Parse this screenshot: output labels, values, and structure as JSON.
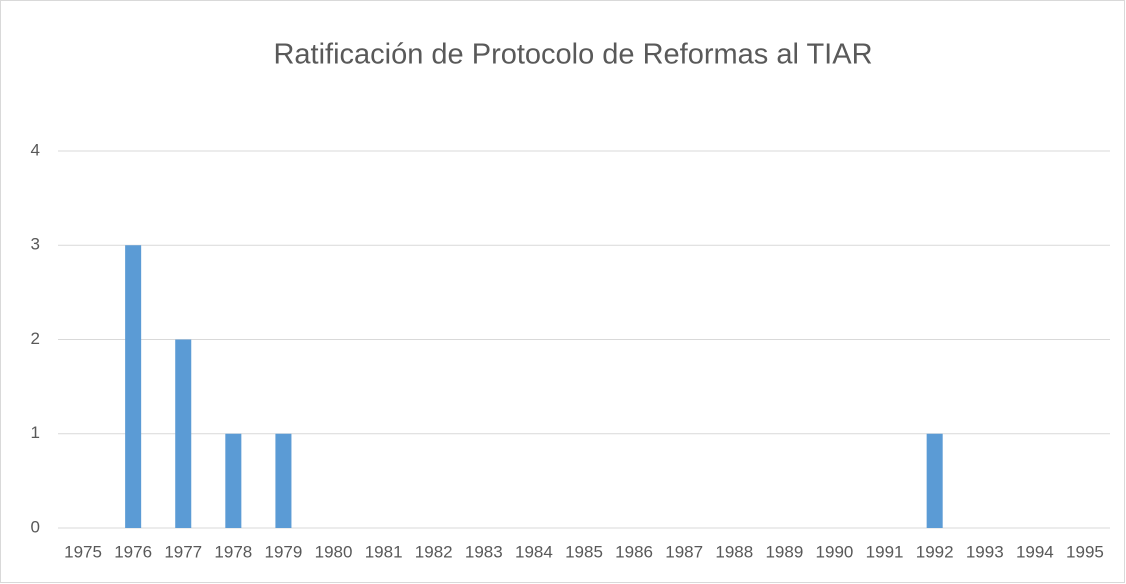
{
  "chart_data": {
    "type": "bar",
    "title": "Ratificación de Protocolo de Reformas al TIAR",
    "categories": [
      "1975",
      "1976",
      "1977",
      "1978",
      "1979",
      "1980",
      "1981",
      "1982",
      "1983",
      "1984",
      "1985",
      "1986",
      "1987",
      "1988",
      "1989",
      "1990",
      "1991",
      "1992",
      "1993",
      "1994",
      "1995"
    ],
    "values": [
      0,
      3,
      2,
      1,
      1,
      0,
      0,
      0,
      0,
      0,
      0,
      0,
      0,
      0,
      0,
      0,
      0,
      1,
      0,
      0,
      0
    ],
    "color": "#5b9bd5",
    "ylim": [
      0,
      4
    ],
    "yticks": [
      0,
      1,
      2,
      3,
      4
    ],
    "grid": true
  }
}
